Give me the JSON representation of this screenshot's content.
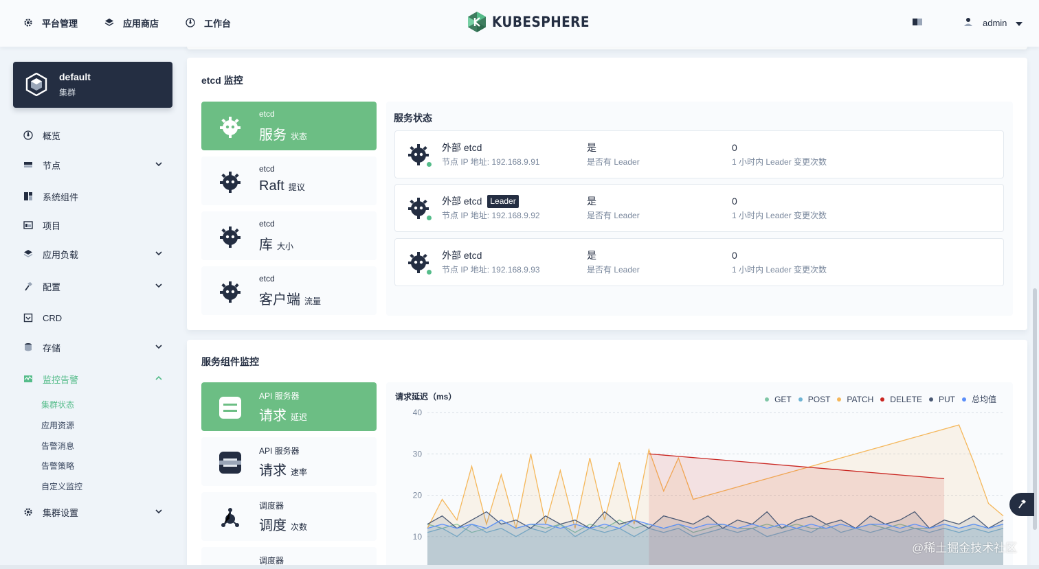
{
  "topbar": {
    "nav": [
      {
        "label": "平台管理",
        "icon": "gear-icon"
      },
      {
        "label": "应用商店",
        "icon": "layers-icon"
      },
      {
        "label": "工作台",
        "icon": "dashboard-icon"
      }
    ],
    "brand": "KUBESPHERE",
    "user": "admin"
  },
  "cluster": {
    "name": "default",
    "type": "集群"
  },
  "sidebar": {
    "items": [
      {
        "label": "概览",
        "icon": "dashboard-icon",
        "has_chevron": false
      },
      {
        "label": "节点",
        "icon": "server-icon",
        "has_chevron": true
      },
      {
        "label": "系统组件",
        "icon": "components-icon",
        "has_chevron": false
      },
      {
        "label": "项目",
        "icon": "project-icon",
        "has_chevron": false
      },
      {
        "label": "应用负载",
        "icon": "layers-icon",
        "has_chevron": true
      },
      {
        "label": "配置",
        "icon": "hammer-icon",
        "has_chevron": true
      },
      {
        "label": "CRD",
        "icon": "crd-icon",
        "has_chevron": false
      },
      {
        "label": "存储",
        "icon": "database-icon",
        "has_chevron": true
      },
      {
        "label": "监控告警",
        "icon": "monitor-icon",
        "has_chevron": true,
        "active": true
      },
      {
        "label": "集群设置",
        "icon": "gear-icon",
        "has_chevron": true
      }
    ],
    "monitoring_sub": [
      {
        "label": "集群状态",
        "active": true
      },
      {
        "label": "应用资源"
      },
      {
        "label": "告警消息"
      },
      {
        "label": "告警策略"
      },
      {
        "label": "自定义监控"
      }
    ]
  },
  "etcd": {
    "title": "etcd 监控",
    "tabs": [
      {
        "sub": "etcd",
        "main": "服务",
        "unit": "状态",
        "icon": "etcd-icon",
        "active": true
      },
      {
        "sub": "etcd",
        "main": "Raft",
        "unit": "提议",
        "icon": "etcd-icon"
      },
      {
        "sub": "etcd",
        "main": "库",
        "unit": "大小",
        "icon": "etcd-icon"
      },
      {
        "sub": "etcd",
        "main": "客户端",
        "unit": "流量",
        "icon": "etcd-icon"
      }
    ],
    "status_title": "服务状态",
    "rows": [
      {
        "name": "外部 etcd",
        "leader_badge": "",
        "ip_label": "节点 IP 地址:",
        "ip": "192.168.9.91",
        "is_leader": "是",
        "is_leader_label": "是否有 Leader",
        "changes": "0",
        "changes_label": "1 小时内 Leader 变更次数"
      },
      {
        "name": "外部 etcd",
        "leader_badge": "Leader",
        "ip_label": "节点 IP 地址:",
        "ip": "192.168.9.92",
        "is_leader": "是",
        "is_leader_label": "是否有 Leader",
        "changes": "0",
        "changes_label": "1 小时内 Leader 变更次数"
      },
      {
        "name": "外部 etcd",
        "leader_badge": "",
        "ip_label": "节点 IP 地址:",
        "ip": "192.168.9.93",
        "is_leader": "是",
        "is_leader_label": "是否有 Leader",
        "changes": "0",
        "changes_label": "1 小时内 Leader 变更次数"
      }
    ]
  },
  "components": {
    "title": "服务组件监控",
    "tabs": [
      {
        "sub": "API 服务器",
        "main": "请求",
        "unit": "延迟",
        "icon": "api-server-icon",
        "active": true
      },
      {
        "sub": "API 服务器",
        "main": "请求",
        "unit": "速率",
        "icon": "api-server-icon"
      },
      {
        "sub": "调度器",
        "main": "调度",
        "unit": "次数",
        "icon": "scheduler-icon"
      },
      {
        "sub": "调度器",
        "main": "",
        "unit": "",
        "icon": "scheduler-icon"
      }
    ]
  },
  "chart_data": {
    "type": "line",
    "title": "请求延迟（ms）",
    "ylim": [
      0,
      40
    ],
    "yticks": [
      10,
      20,
      30,
      40
    ],
    "grid": true,
    "legend_position": "top-right",
    "x": [
      0,
      1,
      2,
      3,
      4,
      5,
      6,
      7,
      8,
      9,
      10,
      11,
      12,
      13,
      14,
      15,
      16,
      17,
      18,
      19,
      20,
      21,
      22,
      23,
      24,
      25,
      26,
      27,
      28,
      29,
      30,
      31,
      32,
      33,
      34,
      35,
      36,
      37,
      38,
      39
    ],
    "series": [
      {
        "name": "GET",
        "color": "#7fc6a5",
        "values": [
          13,
          12,
          13,
          11,
          12,
          14,
          12,
          13,
          12,
          13,
          11,
          13,
          12,
          14,
          12,
          13,
          12,
          13,
          11,
          12,
          13,
          12,
          12,
          13,
          12,
          13,
          12,
          12,
          13,
          12,
          13,
          12,
          13,
          12,
          12,
          13,
          12,
          13,
          12,
          13
        ]
      },
      {
        "name": "POST",
        "color": "#6fb4d4",
        "values": [
          11,
          12,
          10,
          13,
          11,
          12,
          10,
          12,
          11,
          13,
          10,
          12,
          11,
          12,
          10,
          12,
          11,
          12,
          10,
          11,
          12,
          11,
          12,
          10,
          11,
          12,
          11,
          13,
          11,
          12,
          11,
          12,
          11,
          12,
          11,
          12,
          11,
          12,
          11,
          12
        ]
      },
      {
        "name": "PATCH",
        "color": "#f5b75a",
        "values": [
          12,
          19,
          14,
          27,
          13,
          25,
          12,
          30,
          13,
          26,
          12,
          29,
          14,
          28,
          13,
          31,
          21,
          29,
          19,
          20,
          21,
          22,
          23,
          24,
          25,
          26,
          27,
          28,
          29,
          30,
          31,
          32,
          33,
          34,
          35,
          36,
          37,
          28,
          18,
          15
        ]
      },
      {
        "name": "DELETE",
        "color": "#ca2621",
        "values": [
          null,
          null,
          null,
          null,
          null,
          null,
          null,
          null,
          null,
          null,
          null,
          null,
          null,
          null,
          null,
          30,
          29.7,
          29.4,
          29.1,
          28.8,
          28.5,
          28.2,
          27.9,
          27.6,
          27.3,
          27,
          26.7,
          26.4,
          26.1,
          25.8,
          25.5,
          25.2,
          24.9,
          24.6,
          24.3,
          24,
          null,
          null,
          null,
          null
        ]
      },
      {
        "name": "PUT",
        "color": "#4a5974",
        "values": [
          13,
          15,
          12,
          14,
          16,
          13,
          14,
          12,
          15,
          13,
          14,
          12,
          16,
          13,
          14,
          12,
          15,
          14,
          13,
          15,
          12,
          14,
          13,
          16,
          12,
          14,
          15,
          13,
          14,
          12,
          15,
          13,
          14,
          16,
          12,
          14,
          13,
          15,
          12,
          14
        ]
      },
      {
        "name": "总均值",
        "color": "#5b8ff9",
        "values": [
          12,
          13,
          12,
          13,
          12,
          14,
          12,
          13,
          13,
          12,
          13,
          12,
          13,
          12,
          14,
          13,
          12,
          13,
          12,
          13,
          13,
          12,
          13,
          12,
          13,
          12,
          13,
          12,
          13,
          12,
          13,
          13,
          12,
          13,
          12,
          13,
          12,
          13,
          12,
          13
        ]
      }
    ]
  },
  "watermark": "@稀土掘金技术社区"
}
